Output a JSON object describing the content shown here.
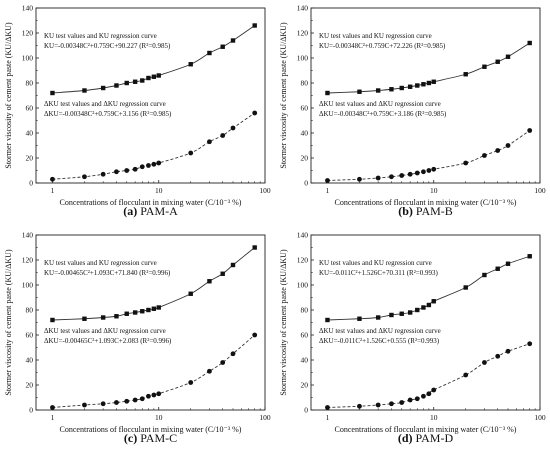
{
  "y_axis_label": "Stormer viscosity of cement paste (KU/ΔKU)",
  "x_axis_label": "Concentrations of flocculant in mixing water (C/10⁻³ %)",
  "chart_data": [
    {
      "type": "scatter",
      "caption_letter": "(a)",
      "caption_name": "PAM-A",
      "xscale": "log",
      "xlim": [
        0.7,
        100
      ],
      "ylim": [
        0,
        140
      ],
      "xticks": [
        1,
        10,
        100
      ],
      "yticks": [
        0,
        20,
        40,
        60,
        80,
        100,
        120,
        140
      ],
      "grid": false,
      "x": [
        1,
        2,
        3,
        4,
        5,
        6,
        7,
        8,
        9,
        10,
        20,
        30,
        40,
        50,
        80
      ],
      "series": [
        {
          "marker": "square",
          "fit": "solid",
          "label_line1": "KU test values and KU regression curve",
          "label_line2": "KU=-0.00348C²+0.759C+90.227 (R²=0.985)",
          "values": [
            72,
            74,
            76,
            78,
            80,
            81,
            82,
            84,
            85,
            86,
            95,
            104,
            109,
            114,
            126
          ],
          "fit_coef": [
            -0.00348,
            0.759,
            90.227
          ]
        },
        {
          "marker": "circle",
          "fit": "dashed",
          "label_line1": "ΔKU test values and ΔKU regression curve",
          "label_line2": "ΔKU=-0.00348C²+0.759C+3.156 (R²=0.985)",
          "values": [
            3,
            5,
            7,
            9,
            10,
            11,
            13,
            14,
            15,
            16,
            24,
            33,
            38,
            44,
            56
          ],
          "fit_coef": [
            -0.00348,
            0.759,
            3.156
          ]
        }
      ]
    },
    {
      "type": "scatter",
      "caption_letter": "(b)",
      "caption_name": "PAM-B",
      "xscale": "log",
      "xlim": [
        0.7,
        100
      ],
      "ylim": [
        0,
        140
      ],
      "xticks": [
        1,
        10,
        100
      ],
      "yticks": [
        0,
        20,
        40,
        60,
        80,
        100,
        120,
        140
      ],
      "grid": false,
      "x": [
        1,
        2,
        3,
        4,
        5,
        6,
        7,
        8,
        9,
        10,
        20,
        30,
        40,
        50,
        80
      ],
      "series": [
        {
          "marker": "square",
          "fit": "solid",
          "label_line1": "KU test values and KU regression curve",
          "label_line2": "KU=-0.00348C²+0.759C+72.226 (R²=0.985)",
          "values": [
            72,
            73,
            74,
            75,
            76,
            77,
            78,
            79,
            80,
            81,
            87,
            93,
            97,
            101,
            112
          ],
          "fit_coef": [
            -0.00348,
            0.759,
            72.226
          ]
        },
        {
          "marker": "circle",
          "fit": "dashed",
          "label_line1": "ΔKU test values and ΔKU regression curve",
          "label_line2": "ΔKU=-0.00348C²+0.759C+3.186 (R²=0.985)",
          "values": [
            2,
            3,
            4,
            5,
            6,
            7,
            8,
            9,
            10,
            11,
            16,
            22,
            26,
            30,
            42
          ],
          "fit_coef": [
            -0.00348,
            0.759,
            3.186
          ]
        }
      ]
    },
    {
      "type": "scatter",
      "caption_letter": "(c)",
      "caption_name": "PAM-C",
      "xscale": "log",
      "xlim": [
        0.7,
        100
      ],
      "ylim": [
        0,
        140
      ],
      "xticks": [
        1,
        10,
        100
      ],
      "yticks": [
        0,
        20,
        40,
        60,
        80,
        100,
        120,
        140
      ],
      "grid": false,
      "x": [
        1,
        2,
        3,
        4,
        5,
        6,
        7,
        8,
        9,
        10,
        20,
        30,
        40,
        50,
        80
      ],
      "series": [
        {
          "marker": "square",
          "fit": "solid",
          "label_line1": "KU test values and KU regression curve",
          "label_line2": "KU=-0.00465C²+1.093C+71.840 (R²=0.996)",
          "values": [
            72,
            73,
            74,
            75,
            77,
            78,
            79,
            80,
            81,
            82,
            93,
            103,
            109,
            116,
            130
          ],
          "fit_coef": [
            -0.00465,
            1.093,
            71.84
          ]
        },
        {
          "marker": "circle",
          "fit": "dashed",
          "label_line1": "ΔKU test values and ΔKU regression curve",
          "label_line2": "ΔKU=-0.00465C²+1.093C+2.083 (R²=0.996)",
          "values": [
            2,
            4,
            5,
            6,
            7,
            8,
            9,
            11,
            12,
            13,
            22,
            31,
            38,
            45,
            60
          ],
          "fit_coef": [
            -0.00465,
            1.093,
            2.083
          ]
        }
      ]
    },
    {
      "type": "scatter",
      "caption_letter": "(d)",
      "caption_name": "PAM-D",
      "xscale": "log",
      "xlim": [
        0.7,
        100
      ],
      "ylim": [
        0,
        140
      ],
      "xticks": [
        1,
        10,
        100
      ],
      "yticks": [
        0,
        20,
        40,
        60,
        80,
        100,
        120,
        140
      ],
      "grid": false,
      "x": [
        1,
        2,
        3,
        4,
        5,
        6,
        7,
        8,
        9,
        10,
        20,
        30,
        40,
        50,
        80
      ],
      "series": [
        {
          "marker": "square",
          "fit": "solid",
          "label_line1": "KU test values and KU regression curve",
          "label_line2": "KU=-0.011C²+1.526C+70.311 (R²=0.993)",
          "values": [
            72,
            73,
            74,
            76,
            77,
            78,
            80,
            82,
            84,
            87,
            98,
            108,
            113,
            117,
            123
          ],
          "fit_coef": [
            -0.011,
            1.526,
            70.311
          ]
        },
        {
          "marker": "circle",
          "fit": "dashed",
          "label_line1": "ΔKU test values and ΔKU regression curve",
          "label_line2": "ΔKU=-0.011C²+1.526C+0.555 (R²=0.993)",
          "values": [
            2,
            3,
            4,
            5,
            6,
            8,
            9,
            11,
            13,
            16,
            28,
            38,
            43,
            47,
            53
          ],
          "fit_coef": [
            -0.011,
            1.526,
            0.555
          ]
        }
      ]
    }
  ]
}
